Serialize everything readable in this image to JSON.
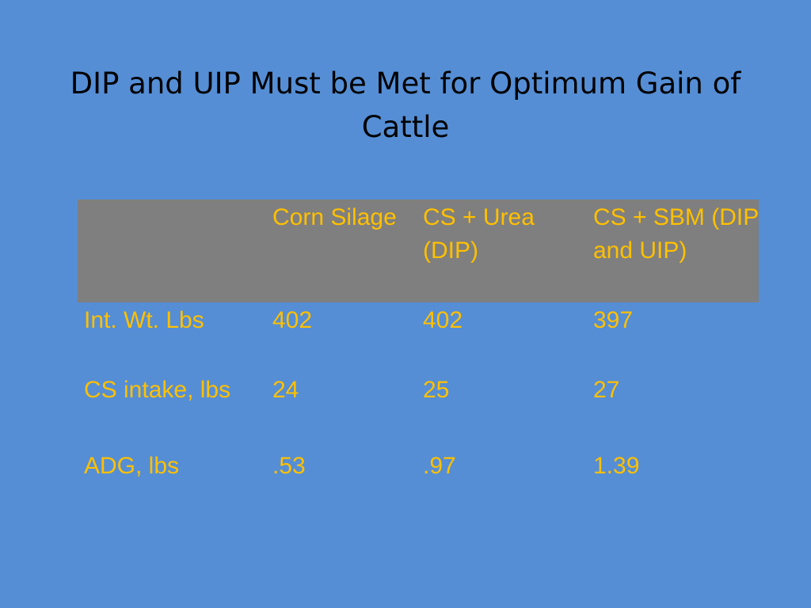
{
  "slide": {
    "title": "DIP and UIP Must be Met for Optimum Gain of Cattle"
  },
  "table": {
    "headers": [
      "",
      "Corn Silage",
      "CS + Urea (DIP)",
      "CS + SBM (DIP and UIP)"
    ],
    "rows": [
      [
        "Int. Wt. Lbs",
        "402",
        "402",
        "397"
      ],
      [
        "CS intake, lbs",
        "24",
        "25",
        "27"
      ],
      [
        "ADG, lbs",
        ".53",
        ".97",
        "1.39"
      ]
    ]
  },
  "colors": {
    "background": "#558ed5",
    "header_fill": "#7f7f7f",
    "table_text": "#ffc000",
    "title_text": "#000000"
  }
}
